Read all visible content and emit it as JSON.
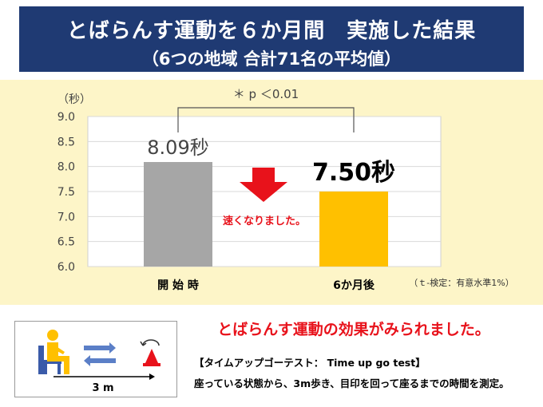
{
  "header": {
    "title": "とばらんす運動を６か月間　実施した結果",
    "subtitle": "（6つの地域 合計71名の平均値）"
  },
  "chart_data": {
    "type": "bar",
    "categories": [
      "開 始 時",
      "6か月後"
    ],
    "values": [
      8.09,
      7.5
    ],
    "value_labels": [
      "8.09秒",
      "7.50秒"
    ],
    "bar_colors": [
      "#a6a6a6",
      "#ffc000"
    ],
    "ylabel": "（秒）",
    "ylim": [
      6.0,
      9.0
    ],
    "yticks": [
      "6.0",
      "6.5",
      "7.0",
      "7.5",
      "8.0",
      "8.5",
      "9.0"
    ],
    "significance": "＊ p ＜0.01",
    "arrow_text": "速くなりました。",
    "footnote": "（ｔ-検定：有意水準1%）",
    "arrow_color": "#e8121b"
  },
  "result_message": "とばらんす運動の効果がみられました。",
  "test": {
    "title": "【タイムアップゴーテスト： Time up go test】",
    "description": "座っている状態から、3m歩き、目印を回って座るまでの時間を測定。",
    "distance_label": "3 m"
  }
}
